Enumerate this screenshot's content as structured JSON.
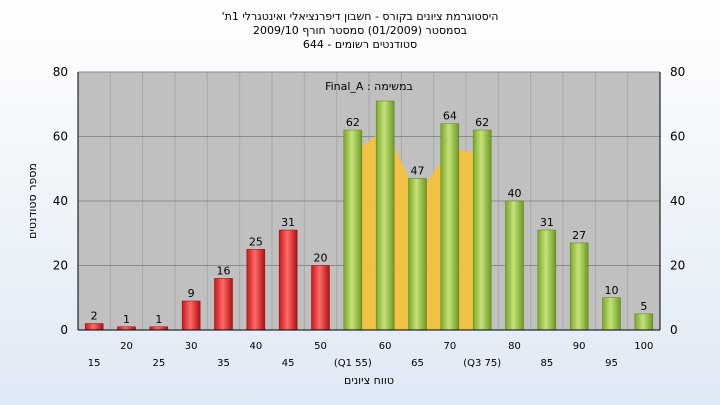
{
  "chart_data": {
    "type": "bar",
    "title_lines": [
      "היסטוגרמת ציונים בקורס - חשבון דיפרנציאלי ואינטגרלי 1ת'",
      "בסמסטר  (01/2009)  סמסטר חורף  2009/10",
      "סטודנטים רשומים - 644"
    ],
    "annotation": "במשימה : Final_A",
    "xlabel": "טווח ציונים",
    "ylabel": "מספר סטודנטים",
    "ylim": [
      0,
      80
    ],
    "yticks": [
      0,
      20,
      40,
      60,
      80
    ],
    "grid": true,
    "categories": [
      "15",
      "20",
      "25",
      "30",
      "35",
      "40",
      "45",
      "50",
      "(Q1 55)",
      "60",
      "65",
      "70",
      "(Q3 75)",
      "80",
      "85",
      "90",
      "95",
      "100"
    ],
    "values": [
      2,
      1,
      1,
      9,
      16,
      25,
      31,
      20,
      62,
      71,
      47,
      64,
      62,
      40,
      31,
      27,
      10,
      5
    ],
    "data_labels": [
      "2",
      "1",
      "1",
      "9",
      "16",
      "25",
      "31",
      "20",
      "62",
      "",
      "47",
      "64",
      "62",
      "40",
      "31",
      "27",
      "10",
      "5"
    ],
    "fail_color": "#e03030",
    "pass_color": "#8fbf3a",
    "area_color": "#f7c23a",
    "fail_count": 8,
    "area_start_index": 8,
    "area_end_index": 12
  }
}
